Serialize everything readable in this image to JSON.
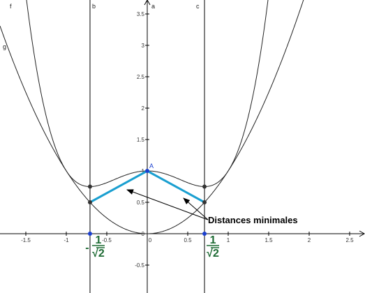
{
  "x_axis": {
    "ticks": [
      -1.5,
      -1,
      -0.5,
      0,
      0.5,
      1,
      1.5,
      2,
      2.5
    ]
  },
  "y_axis": {
    "ticks": [
      -0.5,
      0,
      0.5,
      1,
      1.5,
      2,
      2.5,
      3,
      3.5
    ]
  },
  "labels": {
    "f": "f",
    "g": "g",
    "b": "b",
    "a": "a",
    "c": "c",
    "A": "A"
  },
  "fractions": [
    {
      "sign": "-",
      "numerator": "1",
      "denominator": "√2"
    },
    {
      "numerator": "1",
      "denominator": "√2"
    }
  ],
  "annotation": "Distances minimales"
}
